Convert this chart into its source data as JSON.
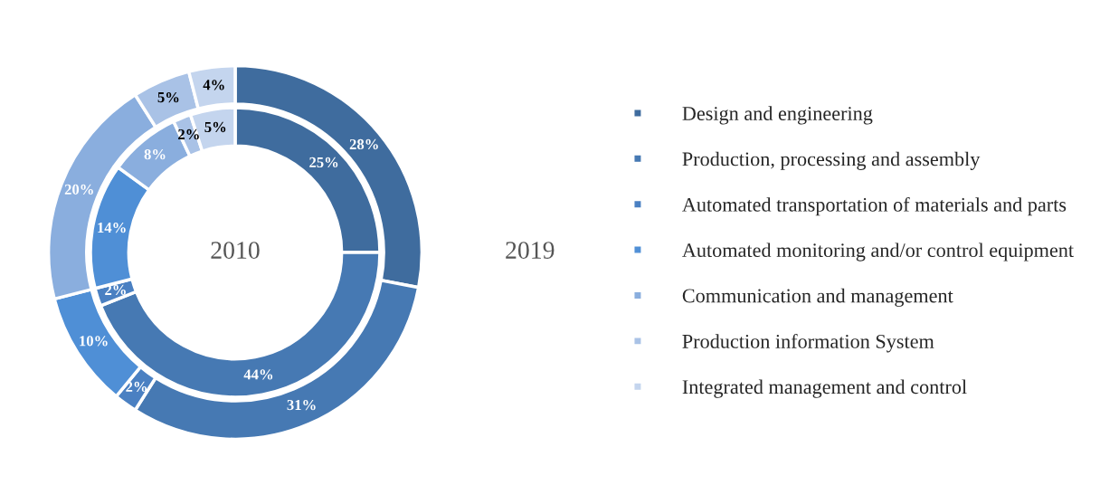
{
  "chart_data": {
    "type": "donut",
    "categories": [
      "Design and engineering",
      "Production, processing and assembly",
      "Automated transportation of materials and parts",
      "Automated monitoring and/or control equipment",
      "Communication and management",
      "Production information System",
      "Integrated management and control"
    ],
    "colors": [
      "#3f6c9e",
      "#4679b3",
      "#4a80c2",
      "#4f8fd6",
      "#8aaede",
      "#a9c2e6",
      "#c4d5ee"
    ],
    "series": [
      {
        "name": "2010",
        "values": [
          25,
          44,
          2,
          14,
          8,
          2,
          5
        ],
        "value_labels": [
          "25%",
          "44%",
          "2%",
          "14%",
          "8%",
          "2%",
          "5%"
        ]
      },
      {
        "name": "2019",
        "values": [
          28,
          31,
          2,
          10,
          20,
          5,
          4
        ],
        "value_labels": [
          "28%",
          "31%",
          "2%",
          "10%",
          "20%",
          "5%",
          "4%"
        ]
      }
    ],
    "legend": "right"
  }
}
